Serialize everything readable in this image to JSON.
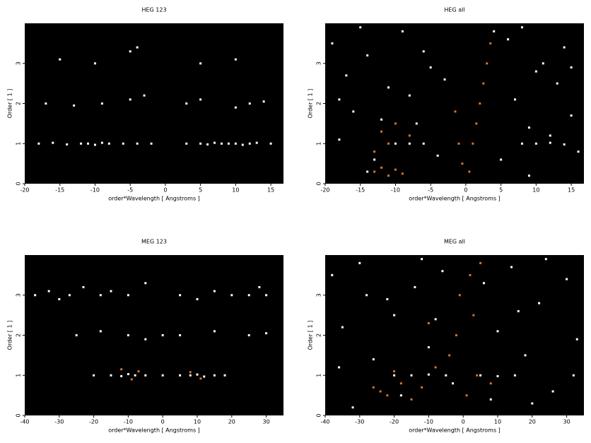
{
  "chart_data": [
    {
      "type": "scatter",
      "title": "HEG 123",
      "xlabel": "order*Wavelength [ Angstroms ]",
      "ylabel": "Order [ 1 ]",
      "xlim": [
        -20,
        16.8
      ],
      "ylim": [
        0,
        4
      ],
      "xticks": [
        -20,
        -15,
        -10,
        -5,
        0,
        5,
        10,
        15
      ],
      "yticks": [
        0,
        1,
        2,
        3
      ],
      "series": [
        {
          "color": "#ffffff",
          "x": [
            -18,
            -16,
            -14,
            -12,
            -11,
            -10,
            -9,
            -8,
            -6,
            -4,
            -2,
            3,
            5,
            6,
            7,
            8,
            9,
            10,
            11,
            12,
            13,
            15,
            -17,
            -13,
            -9,
            -5,
            -3,
            3,
            5,
            10,
            12,
            14,
            -15,
            -10,
            -5,
            -4,
            5,
            10
          ],
          "y": [
            1,
            1.02,
            0.98,
            1,
            1,
            0.97,
            1.02,
            1,
            1,
            1,
            1,
            1,
            1,
            0.98,
            1.02,
            1,
            1,
            1,
            0.97,
            1,
            1.02,
            1,
            2,
            1.95,
            2,
            2.1,
            2.2,
            2,
            2.1,
            1.9,
            2,
            2.05,
            3.1,
            3,
            3.3,
            3.4,
            3,
            3.1
          ]
        }
      ]
    },
    {
      "type": "scatter",
      "title": "HEG all",
      "xlabel": "order*Wavelength [ Angstroms ]",
      "ylabel": "Order [ 1 ]",
      "xlim": [
        -20,
        16.8
      ],
      "ylim": [
        0,
        4
      ],
      "xticks": [
        -20,
        -15,
        -10,
        -5,
        0,
        5,
        10,
        15
      ],
      "yticks": [
        0,
        1,
        2,
        3
      ],
      "series": [
        {
          "color": "#ffffff",
          "x": [
            -19,
            -17,
            -16,
            -14,
            -13,
            -11,
            -9,
            -7,
            -5,
            -4,
            -18,
            -15,
            -12,
            -8,
            -6,
            -3,
            6,
            7,
            9,
            11,
            13,
            15,
            5,
            8,
            10,
            12,
            14,
            16,
            -10,
            -8,
            -6,
            8,
            10,
            12,
            14,
            -18,
            -14,
            4,
            9,
            15
          ],
          "y": [
            3.5,
            2.7,
            1.8,
            3.2,
            0.6,
            2.4,
            3.8,
            1.5,
            2.9,
            0.7,
            1.1,
            3.9,
            1.6,
            2.2,
            3.3,
            2.6,
            3.6,
            2.1,
            1.4,
            3.0,
            2.5,
            1.7,
            0.6,
            3.9,
            2.8,
            1.2,
            3.4,
            0.8,
            1,
            1,
            1,
            1,
            1,
            1.02,
            0.98,
            2.1,
            0.3,
            3.8,
            0.2,
            2.9
          ]
        },
        {
          "color": "#e07020",
          "x": [
            -13,
            -12,
            -11,
            -10,
            -9,
            -12,
            -10,
            -8,
            -13,
            -11,
            -1,
            -0.5,
            0.5,
            1.5,
            2,
            2.5,
            3,
            3.5,
            -1.5,
            1
          ],
          "y": [
            0.3,
            0.4,
            0.2,
            0.35,
            0.25,
            1.3,
            1.5,
            1.2,
            0.8,
            1.0,
            1,
            0.5,
            0.3,
            1.5,
            2.0,
            2.5,
            3.0,
            3.5,
            1.8,
            1
          ]
        }
      ]
    },
    {
      "type": "scatter",
      "title": "MEG 123",
      "xlabel": "order*Wavelength [ Angstroms ]",
      "ylabel": "Order [ 1 ]",
      "xlim": [
        -40,
        35
      ],
      "ylim": [
        0,
        4
      ],
      "xticks": [
        -40,
        -30,
        -20,
        -10,
        0,
        10,
        20,
        30
      ],
      "yticks": [
        0,
        1,
        2,
        3
      ],
      "series": [
        {
          "color": "#ffffff",
          "x": [
            -37,
            -33,
            -30,
            -27,
            -23,
            -18,
            -15,
            -10,
            -5,
            5,
            10,
            15,
            20,
            25,
            28,
            30,
            -25,
            -18,
            -10,
            -5,
            0,
            5,
            15,
            25,
            30,
            -20,
            -15,
            -12,
            -10,
            -8,
            -5,
            0,
            5,
            8,
            10,
            12,
            15,
            18
          ],
          "y": [
            3,
            3.1,
            2.9,
            3,
            3.2,
            3,
            3.1,
            3,
            3.3,
            3,
            2.9,
            3.1,
            3,
            3,
            3.2,
            3,
            2,
            2.1,
            2,
            1.9,
            2,
            2,
            2.1,
            2,
            2.05,
            1,
            1,
            0.98,
            1.03,
            1,
            1,
            1,
            1,
            1,
            1.02,
            0.97,
            1,
            1
          ]
        },
        {
          "color": "#e07020",
          "x": [
            -12,
            -9,
            -7,
            8,
            11
          ],
          "y": [
            1.15,
            0.9,
            1.1,
            1.08,
            0.92
          ]
        }
      ]
    },
    {
      "type": "scatter",
      "title": "MEG all",
      "xlabel": "order*Wavelength [ Angstroms ]",
      "ylabel": "Order [ 1 ]",
      "xlim": [
        -40,
        35
      ],
      "ylim": [
        0,
        4
      ],
      "xticks": [
        -40,
        -30,
        -20,
        -10,
        0,
        10,
        20,
        30
      ],
      "yticks": [
        0,
        1,
        2,
        3
      ],
      "series": [
        {
          "color": "#ffffff",
          "x": [
            -38,
            -35,
            -30,
            -26,
            -22,
            -18,
            -14,
            -10,
            -6,
            -3,
            -36,
            -28,
            -20,
            -12,
            6,
            10,
            14,
            18,
            22,
            26,
            30,
            33,
            8,
            16,
            24,
            32,
            -20,
            -15,
            -10,
            -5,
            5,
            10,
            15,
            -8,
            -32,
            20
          ],
          "y": [
            3.5,
            2.2,
            3.8,
            1.4,
            2.9,
            0.5,
            3.2,
            1.7,
            3.6,
            0.8,
            1.2,
            3.0,
            2.5,
            3.9,
            3.3,
            2.1,
            3.7,
            1.5,
            2.8,
            0.6,
            3.4,
            1.9,
            0.4,
            2.6,
            3.9,
            1.0,
            1,
            1,
            1.02,
            1,
            1,
            0.98,
            1,
            2.4,
            0.2,
            0.3
          ]
        },
        {
          "color": "#e07020",
          "x": [
            -24,
            -22,
            -18,
            -15,
            -12,
            -8,
            -4,
            -2,
            -1,
            1,
            2,
            3,
            4,
            5,
            -26,
            -20,
            -10,
            8
          ],
          "y": [
            0.6,
            0.5,
            0.8,
            0.4,
            0.7,
            1.2,
            1.5,
            2.0,
            3.0,
            0.5,
            3.5,
            2.5,
            1.0,
            3.8,
            0.7,
            1.1,
            2.3,
            0.8
          ]
        }
      ]
    }
  ]
}
